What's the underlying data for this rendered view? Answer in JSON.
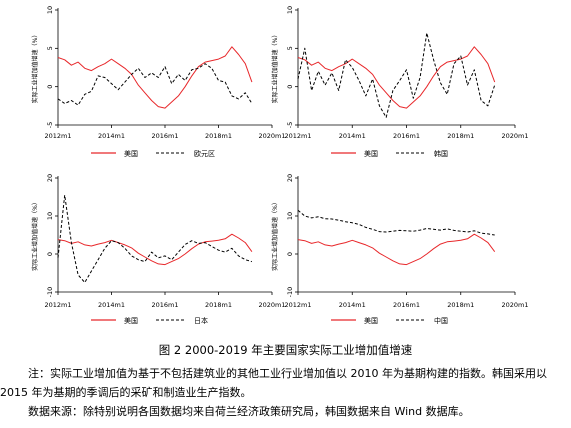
{
  "caption": "图 2    2000-2019 年主要国家实际工业增加值增速",
  "notes": {
    "note": "注：实际工业增加值为基于不包括建筑业的其他工业行业增加值以 2010 年为基期构建的指数。韩国采用以 2015 年为基期的季调后的采矿和制造业生产指数。",
    "source": "数据来源：除特别说明各国数据均来自荷兰经济政策研究局，韩国数据来自 Wind 数据库。"
  },
  "colors": {
    "us": "#e8282b",
    "other": "#000000"
  },
  "chart_data": [
    {
      "type": "line",
      "ylabel": "实际工业增加值增速（%）",
      "ylim": [
        -5,
        10
      ],
      "yticks": [
        "-5",
        "0",
        "5",
        "10"
      ],
      "xticks": [
        "2012m1",
        "2014m1",
        "2016m1",
        "2018m1",
        "2020m1"
      ],
      "legend": [
        "美国",
        "欧元区"
      ],
      "series": [
        {
          "name": "美国",
          "x_start": 2012.0,
          "step": 0.25,
          "values": [
            3.8,
            3.5,
            2.8,
            3.2,
            2.4,
            2.1,
            2.6,
            3.0,
            3.6,
            3.0,
            2.4,
            1.6,
            0.2,
            -0.8,
            -1.8,
            -2.6,
            -2.8,
            -2.0,
            -1.2,
            0.0,
            1.4,
            2.6,
            3.2,
            3.4,
            3.6,
            4.0,
            5.2,
            4.2,
            3.0,
            0.6
          ]
        },
        {
          "name": "欧元区",
          "x_start": 2012.0,
          "step": 0.25,
          "values": [
            -1.6,
            -2.2,
            -1.8,
            -2.4,
            -1.0,
            -0.6,
            1.4,
            1.2,
            0.4,
            -0.4,
            0.6,
            1.6,
            2.4,
            1.2,
            1.8,
            1.2,
            2.6,
            0.4,
            1.6,
            0.8,
            2.2,
            2.4,
            3.0,
            2.4,
            0.8,
            0.6,
            -1.2,
            -1.6,
            -0.8,
            -2.2
          ]
        }
      ]
    },
    {
      "type": "line",
      "ylabel": "实际工业增加值增速（%）",
      "ylim": [
        -5,
        10
      ],
      "yticks": [
        "-5",
        "0",
        "5",
        "10"
      ],
      "xticks": [
        "2012m1",
        "2014m1",
        "2016m1",
        "2018m1",
        "2020m1"
      ],
      "legend": [
        "美国",
        "韩国"
      ],
      "series": [
        {
          "name": "美国",
          "x_start": 2012.0,
          "step": 0.25,
          "values": [
            3.8,
            3.5,
            2.8,
            3.2,
            2.4,
            2.1,
            2.6,
            3.0,
            3.6,
            3.0,
            2.4,
            1.6,
            0.2,
            -0.8,
            -1.8,
            -2.6,
            -2.8,
            -2.0,
            -1.2,
            0.0,
            1.4,
            2.6,
            3.2,
            3.4,
            3.6,
            4.0,
            5.2,
            4.2,
            3.0,
            0.6
          ]
        },
        {
          "name": "韩国",
          "x_start": 2012.0,
          "step": 0.25,
          "values": [
            1.0,
            5.0,
            -0.5,
            2.0,
            0.2,
            1.8,
            -0.5,
            3.5,
            2.5,
            0.8,
            -1.2,
            1.0,
            -2.5,
            -4.0,
            -0.5,
            0.8,
            2.2,
            -1.5,
            1.2,
            7.0,
            3.5,
            0.5,
            -1.0,
            3.0,
            4.0,
            0.2,
            2.2,
            -1.8,
            -2.5,
            0.2
          ]
        }
      ]
    },
    {
      "type": "line",
      "ylabel": "实际工业增加值增速（%）",
      "ylim": [
        -10,
        20
      ],
      "yticks": [
        "-10",
        "0",
        "10",
        "20"
      ],
      "xticks": [
        "2012m1",
        "2014m1",
        "2016m1",
        "2018m1",
        "2020m1"
      ],
      "legend": [
        "美国",
        "日本"
      ],
      "series": [
        {
          "name": "美国",
          "x_start": 2012.0,
          "step": 0.25,
          "values": [
            3.8,
            3.5,
            2.8,
            3.2,
            2.4,
            2.1,
            2.6,
            3.0,
            3.6,
            3.0,
            2.4,
            1.6,
            0.2,
            -0.8,
            -1.8,
            -2.6,
            -2.8,
            -2.0,
            -1.2,
            0.0,
            1.4,
            2.6,
            3.2,
            3.4,
            3.6,
            4.0,
            5.2,
            4.2,
            3.0,
            0.6
          ]
        },
        {
          "name": "日本",
          "x_start": 2012.0,
          "step": 0.25,
          "values": [
            -1.0,
            15.5,
            3.0,
            -5.5,
            -7.5,
            -4.5,
            -1.5,
            1.5,
            3.5,
            3.0,
            1.5,
            -0.5,
            -1.5,
            -2.0,
            0.5,
            -1.0,
            -0.5,
            -1.5,
            0.5,
            2.5,
            3.5,
            2.8,
            3.0,
            2.0,
            1.0,
            0.5,
            1.5,
            -0.5,
            -1.5,
            -2.0
          ]
        }
      ]
    },
    {
      "type": "line",
      "ylabel": "实际工业增加值增速（%）",
      "ylim": [
        -10,
        20
      ],
      "yticks": [
        "-10",
        "0",
        "10",
        "20"
      ],
      "xticks": [
        "2012m1",
        "2014m1",
        "2016m1",
        "2018m1",
        "2020m1"
      ],
      "legend": [
        "美国",
        "中国"
      ],
      "series": [
        {
          "name": "美国",
          "x_start": 2012.0,
          "step": 0.25,
          "values": [
            3.8,
            3.5,
            2.8,
            3.2,
            2.4,
            2.1,
            2.6,
            3.0,
            3.6,
            3.0,
            2.4,
            1.6,
            0.2,
            -0.8,
            -1.8,
            -2.6,
            -2.8,
            -2.0,
            -1.2,
            0.0,
            1.4,
            2.6,
            3.2,
            3.4,
            3.6,
            4.0,
            5.2,
            4.2,
            3.0,
            0.6
          ]
        },
        {
          "name": "中国",
          "x_start": 2012.0,
          "step": 0.25,
          "values": [
            11.5,
            10.0,
            9.5,
            9.8,
            9.3,
            9.2,
            8.9,
            8.5,
            8.2,
            7.8,
            7.0,
            6.5,
            5.9,
            5.8,
            6.0,
            6.2,
            6.1,
            6.0,
            6.3,
            6.7,
            6.5,
            6.3,
            6.6,
            6.2,
            6.0,
            5.8,
            6.1,
            5.5,
            5.3,
            5.0
          ]
        }
      ]
    }
  ]
}
